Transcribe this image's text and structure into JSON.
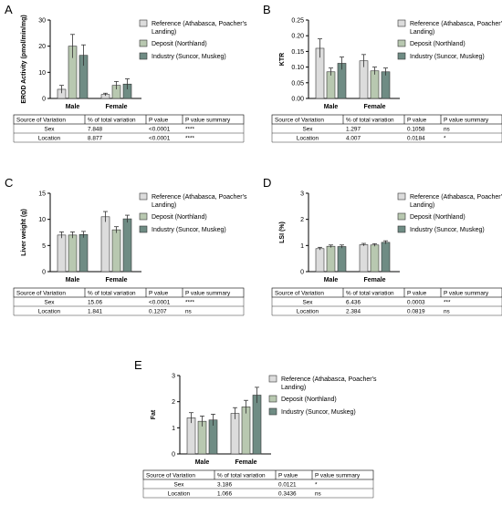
{
  "legend_labels": [
    "Reference (Athabasca, Poacher's",
    "Landing)",
    "Deposit (Northland)",
    "Industry (Suncor, Muskeg)"
  ],
  "categories": [
    "Male",
    "Female"
  ],
  "table_headers": [
    "Source of Variation",
    "% of total variation",
    "P value",
    "P value summary"
  ],
  "colors": {
    "reference": "#dcdcdc",
    "deposit": "#b8c8b0",
    "industry": "#6f8c84"
  },
  "chart_data": [
    {
      "panel": "A",
      "type": "bar",
      "ylabel": "EROD Activity (pmol/min/mg)",
      "ylim": [
        0,
        30
      ],
      "yticks": [
        "0",
        "10",
        "20",
        "30"
      ],
      "categories": [
        "Male",
        "Female"
      ],
      "series": [
        {
          "name": "Reference (Athabasca, Poacher's Landing)",
          "values": [
            3.5,
            1.5
          ],
          "errors": [
            1.5,
            0.5
          ]
        },
        {
          "name": "Deposit (Northland)",
          "values": [
            20,
            5
          ],
          "errors": [
            4.5,
            1.5
          ]
        },
        {
          "name": "Industry (Suncor, Muskeg)",
          "values": [
            16.5,
            5.5
          ],
          "errors": [
            4,
            2
          ]
        }
      ],
      "table": [
        [
          "Sex",
          "7.848",
          "<0.0001",
          "****"
        ],
        [
          "Location",
          "8.877",
          "<0.0001",
          "****"
        ]
      ]
    },
    {
      "panel": "B",
      "type": "bar",
      "ylabel": "KTR",
      "ylim": [
        0,
        0.25
      ],
      "yticks": [
        "0.00",
        "0.05",
        "0.10",
        "0.15",
        "0.20",
        "0.25"
      ],
      "categories": [
        "Male",
        "Female"
      ],
      "series": [
        {
          "name": "Reference (Athabasca, Poacher's Landing)",
          "values": [
            0.16,
            0.12
          ],
          "errors": [
            0.03,
            0.02
          ]
        },
        {
          "name": "Deposit (Northland)",
          "values": [
            0.085,
            0.088
          ],
          "errors": [
            0.012,
            0.012
          ]
        },
        {
          "name": "Industry (Suncor, Muskeg)",
          "values": [
            0.112,
            0.085
          ],
          "errors": [
            0.02,
            0.012
          ]
        }
      ],
      "table": [
        [
          "Sex",
          "1.297",
          "0.1058",
          "ns"
        ],
        [
          "Location",
          "4.007",
          "0.0184",
          "*"
        ]
      ]
    },
    {
      "panel": "C",
      "type": "bar",
      "ylabel": "Liver weight (g)",
      "ylim": [
        0,
        15
      ],
      "yticks": [
        "0",
        "5",
        "10",
        "15"
      ],
      "categories": [
        "Male",
        "Female"
      ],
      "series": [
        {
          "name": "Reference (Athabasca, Poacher's Landing)",
          "values": [
            7.0,
            10.5
          ],
          "errors": [
            0.6,
            1.0
          ]
        },
        {
          "name": "Deposit (Northland)",
          "values": [
            7.0,
            8.0
          ],
          "errors": [
            0.6,
            0.6
          ]
        },
        {
          "name": "Industry (Suncor, Muskeg)",
          "values": [
            7.1,
            10.1
          ],
          "errors": [
            0.6,
            0.7
          ]
        }
      ],
      "table": [
        [
          "Sex",
          "15.06",
          "<0.0001",
          "****"
        ],
        [
          "Location",
          "1.841",
          "0.1207",
          "ns"
        ]
      ]
    },
    {
      "panel": "D",
      "type": "bar",
      "ylabel": "LSI (%)",
      "ylim": [
        0,
        3
      ],
      "yticks": [
        "0",
        "1",
        "2",
        "3"
      ],
      "categories": [
        "Male",
        "Female"
      ],
      "series": [
        {
          "name": "Reference (Athabasca, Poacher's Landing)",
          "values": [
            0.88,
            1.03
          ],
          "errors": [
            0.05,
            0.05
          ]
        },
        {
          "name": "Deposit (Northland)",
          "values": [
            0.97,
            1.02
          ],
          "errors": [
            0.05,
            0.05
          ]
        },
        {
          "name": "Industry (Suncor, Muskeg)",
          "values": [
            0.96,
            1.12
          ],
          "errors": [
            0.06,
            0.06
          ]
        }
      ],
      "table": [
        [
          "Sex",
          "6.436",
          "0.0003",
          "***"
        ],
        [
          "Location",
          "2.384",
          "0.0819",
          "ns"
        ]
      ]
    },
    {
      "panel": "E",
      "type": "bar",
      "ylabel": "Fat",
      "ylim": [
        0,
        3
      ],
      "yticks": [
        "0",
        "1",
        "2",
        "3"
      ],
      "categories": [
        "Male",
        "Female"
      ],
      "series": [
        {
          "name": "Reference (Athabasca, Poacher's Landing)",
          "values": [
            1.38,
            1.55
          ],
          "errors": [
            0.2,
            0.22
          ]
        },
        {
          "name": "Deposit (Northland)",
          "values": [
            1.25,
            1.8
          ],
          "errors": [
            0.2,
            0.25
          ]
        },
        {
          "name": "Industry (Suncor, Muskeg)",
          "values": [
            1.3,
            2.25
          ],
          "errors": [
            0.22,
            0.3
          ]
        }
      ],
      "table": [
        [
          "Sex",
          "3.186",
          "0.0121",
          "*"
        ],
        [
          "Location",
          "1.066",
          "0.3436",
          "ns"
        ]
      ]
    }
  ]
}
